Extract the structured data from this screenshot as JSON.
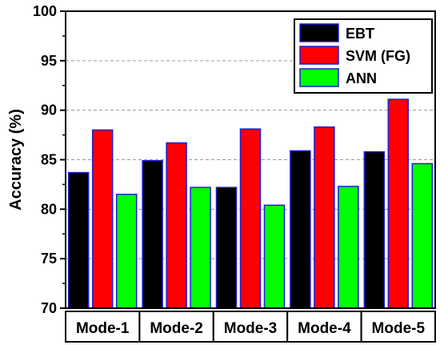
{
  "chart_data": {
    "type": "bar",
    "title": "",
    "xlabel": "",
    "ylabel": "Accuracy (%)",
    "ylim": [
      70,
      100
    ],
    "yticks": [
      70,
      75,
      80,
      85,
      90,
      95,
      100
    ],
    "grid": "horizontal dashed",
    "legend_position": "top-right",
    "categories": [
      "Mode-1",
      "Mode-2",
      "Mode-3",
      "Mode-4",
      "Mode-5"
    ],
    "series": [
      {
        "name": "EBT",
        "color": "#000000",
        "values": [
          83.7,
          84.9,
          82.2,
          85.9,
          85.8
        ]
      },
      {
        "name": "SVM (FG)",
        "color": "#ff0000",
        "values": [
          88.0,
          86.7,
          88.1,
          88.3,
          91.1
        ]
      },
      {
        "name": "ANN",
        "color": "#00ff00",
        "values": [
          81.5,
          82.2,
          80.4,
          82.3,
          84.6
        ]
      }
    ],
    "bar_edge_color": "#1f1fd6"
  }
}
